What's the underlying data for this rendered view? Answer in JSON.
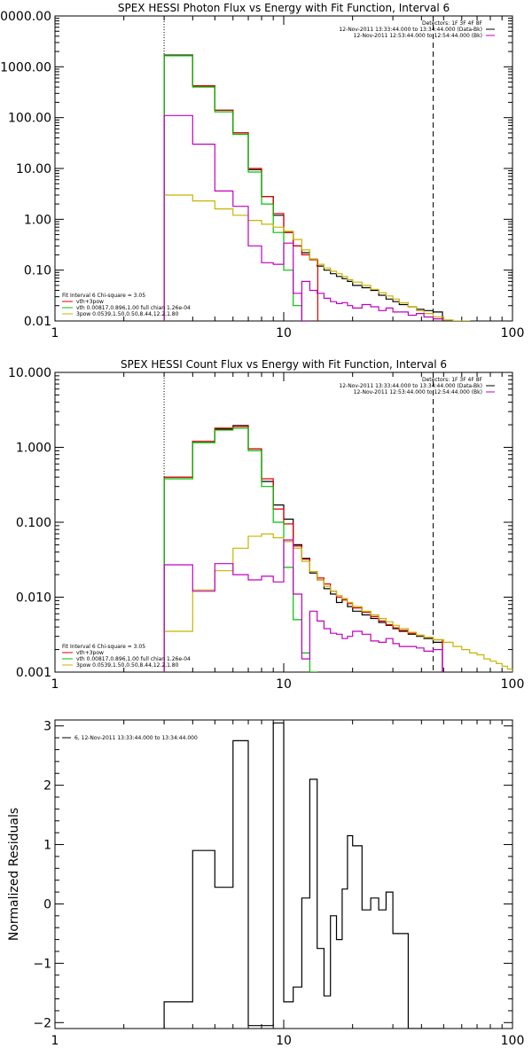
{
  "chart_data": [
    {
      "type": "line",
      "title": "SPEX HESSI Photon Flux vs Energy with Fit Function, Interval 6",
      "xscale": "log",
      "yscale": "log",
      "xlim": [
        1,
        100
      ],
      "ylim": [
        0.01,
        10000
      ],
      "xticks": [
        1,
        10,
        100
      ],
      "xtick_labels": [
        "1",
        "10",
        "100"
      ],
      "yticks": [
        0.01,
        0.1,
        1,
        10,
        100,
        1000,
        10000
      ],
      "ytick_labels": [
        "0.01",
        "0.10",
        "1.00",
        "10.00",
        "100.00",
        "1000.00",
        "10000.00"
      ],
      "vlines": [
        {
          "x": 3,
          "style": "dotted"
        },
        {
          "x": 45,
          "style": "dashed"
        }
      ],
      "legend_top": {
        "placement": "top-right",
        "lines": [
          {
            "text": "Detectors: 1F 3F 4F 8F",
            "color": ""
          },
          {
            "text": "12-Nov-2011 13:33:44.000 to 13:34:44.000 (Data-Bk)",
            "color": "#000000"
          },
          {
            "text": "12-Nov-2011 12:53:44.000 to 12:54:44.000 (Bk)",
            "color": "#c000c0"
          }
        ]
      },
      "legend_bottom": {
        "placement": "bottom-left",
        "lines": [
          {
            "text": "Fit Interval 6   Chi-square = 3.05",
            "color": ""
          },
          {
            "text": "vth+3pow",
            "color": "#e00000"
          },
          {
            "text": "vth 0.00817,0.896,1.00   full chian 1.26e-04",
            "color": "#00c000"
          },
          {
            "text": "3pow 0.0539,1.50,0.50,8.44,12.2,1.80",
            "color": "#c8b400"
          }
        ]
      },
      "series": [
        {
          "color": "#000000",
          "x": [
            3,
            4,
            5,
            6,
            7,
            8,
            9,
            10,
            11,
            12,
            13,
            14,
            15,
            16,
            17,
            18,
            19,
            20,
            22,
            24,
            26,
            28,
            30,
            32,
            35,
            38,
            41,
            45
          ],
          "y": [
            1700,
            420,
            140,
            50,
            9.5,
            2.8,
            1.2,
            0.55,
            0.3,
            0.22,
            0.165,
            0.12,
            0.1,
            0.085,
            0.075,
            0.068,
            0.06,
            0.05,
            0.045,
            0.04,
            0.032,
            0.027,
            0.024,
            0.021,
            0.019,
            0.017,
            0.016,
            0.015
          ]
        },
        {
          "color": "#e00000",
          "x": [
            3,
            4,
            5,
            6,
            7,
            8,
            9,
            10,
            11,
            12,
            13
          ],
          "y": [
            1650,
            420,
            140,
            50,
            10,
            2.8,
            1.3,
            0.55,
            0.3,
            0.2,
            0.16
          ]
        },
        {
          "color": "#00c000",
          "x": [
            3,
            4,
            5,
            6,
            7,
            8,
            9,
            10,
            11,
            12
          ],
          "y": [
            1650,
            400,
            130,
            47,
            8.5,
            2.0,
            0.55,
            0.1,
            0.02,
            0.003
          ]
        },
        {
          "color": "#c8b400",
          "x": [
            3,
            4,
            5,
            6,
            7,
            8,
            9,
            10,
            11,
            12,
            13,
            14,
            15,
            16,
            17,
            18,
            19,
            20,
            22,
            24,
            26,
            28,
            30,
            32,
            35,
            38,
            41,
            45,
            50,
            55,
            60
          ],
          "y": [
            3,
            2.3,
            1.6,
            1.2,
            0.95,
            0.8,
            0.7,
            0.58,
            0.4,
            0.25,
            0.165,
            0.13,
            0.11,
            0.095,
            0.085,
            0.075,
            0.065,
            0.058,
            0.05,
            0.042,
            0.036,
            0.031,
            0.027,
            0.023,
            0.019,
            0.016,
            0.014,
            0.012,
            0.0105,
            0.0095,
            0.009
          ]
        },
        {
          "color": "#c000c0",
          "x": [
            3,
            4,
            5,
            6,
            7,
            8,
            9,
            10,
            11,
            12
          ],
          "y": [
            110,
            30,
            3.6,
            1.8,
            0.3,
            0.14,
            0.13,
            0.34,
            0.035,
            0.005
          ]
        },
        {
          "color": "#c000c0",
          "x": [
            12,
            13,
            14,
            15,
            16,
            17,
            18,
            19,
            20,
            22,
            24,
            26,
            28,
            30,
            32,
            35,
            38,
            41,
            45
          ],
          "y": [
            0.06,
            0.04,
            0.035,
            0.028,
            0.024,
            0.022,
            0.023,
            0.02,
            0.018,
            0.021,
            0.019,
            0.016,
            0.018,
            0.015,
            0.015,
            0.013,
            0.014,
            0.012,
            0.011
          ]
        }
      ]
    },
    {
      "type": "line",
      "title": "SPEX HESSI Count Flux vs Energy with Fit Function, Interval 6",
      "xscale": "log",
      "yscale": "log",
      "xlim": [
        1,
        100
      ],
      "ylim": [
        0.001,
        10
      ],
      "xticks": [
        1,
        10,
        100
      ],
      "xtick_labels": [
        "1",
        "10",
        "100"
      ],
      "yticks": [
        0.001,
        0.01,
        0.1,
        1,
        10
      ],
      "ytick_labels": [
        "0.001",
        "0.010",
        "0.100",
        "1.000",
        "10.000"
      ],
      "vlines": [
        {
          "x": 3,
          "style": "dotted"
        },
        {
          "x": 45,
          "style": "dashed"
        }
      ],
      "legend_top": {
        "placement": "top-right",
        "lines": [
          {
            "text": "Detectors: 1F 3F 4F 8F",
            "color": ""
          },
          {
            "text": "12-Nov-2011 13:33:44.000 to 13:34:44.000 (Data-Bk)",
            "color": "#000000"
          },
          {
            "text": "12-Nov-2011 12:53:44.000 to 12:54:44.000 (Bk)",
            "color": "#c000c0"
          }
        ]
      },
      "legend_bottom": {
        "placement": "bottom-left",
        "lines": [
          {
            "text": "Fit Interval 6   Chi-square = 3.05",
            "color": ""
          },
          {
            "text": "vth+3pow",
            "color": "#e00000"
          },
          {
            "text": "vth 0.00817,0.896,1.00   full chian 1.26e-04",
            "color": "#00c000"
          },
          {
            "text": "3pow 0.0539,1.50,0.50,8.44,12.2,1.80",
            "color": "#c8b400"
          }
        ]
      },
      "series": [
        {
          "color": "#000000",
          "x": [
            3,
            4,
            5,
            6,
            7,
            8,
            9,
            10,
            11,
            12,
            13,
            14,
            15,
            16,
            17,
            18,
            19,
            20,
            22,
            24,
            26,
            28,
            30,
            32,
            35,
            38,
            41,
            45
          ],
          "y": [
            0.4,
            1.2,
            1.75,
            1.95,
            0.95,
            0.35,
            0.17,
            0.11,
            0.05,
            0.033,
            0.021,
            0.017,
            0.013,
            0.011,
            0.0085,
            0.0095,
            0.0075,
            0.0065,
            0.0058,
            0.0052,
            0.0046,
            0.0042,
            0.0038,
            0.0035,
            0.0032,
            0.003,
            0.0028,
            0.0025
          ]
        },
        {
          "color": "#e00000",
          "x": [
            3,
            4,
            5,
            6,
            7,
            8,
            9,
            10,
            11,
            12,
            13,
            14,
            15,
            16,
            17,
            18,
            19,
            20,
            22,
            24,
            26,
            28,
            30,
            32,
            35,
            38,
            41,
            45
          ],
          "y": [
            0.4,
            1.2,
            1.8,
            1.9,
            0.95,
            0.38,
            0.15,
            0.095,
            0.048,
            0.032,
            0.022,
            0.018,
            0.015,
            0.012,
            0.01,
            0.0092,
            0.0082,
            0.0072,
            0.0063,
            0.0055,
            0.0048,
            0.0043,
            0.0039,
            0.0036,
            0.0033,
            0.0031,
            0.0029,
            0.0027
          ]
        },
        {
          "color": "#00c000",
          "x": [
            3,
            4,
            5,
            6,
            7,
            8,
            9,
            10,
            11,
            12,
            13
          ],
          "y": [
            0.38,
            1.15,
            1.7,
            1.8,
            0.9,
            0.3,
            0.1,
            0.025,
            0.005,
            0.0018,
            0.0008
          ]
        },
        {
          "color": "#c8b400",
          "x": [
            3,
            4,
            5,
            6,
            7,
            8,
            9,
            10,
            11,
            12,
            13,
            14,
            15,
            16,
            17,
            18,
            19,
            20,
            22,
            24,
            26,
            28,
            30,
            32,
            35,
            38,
            41,
            45,
            50,
            55,
            60,
            65,
            70,
            75,
            80,
            85,
            90,
            95
          ],
          "y": [
            0.0035,
            0.0125,
            0.0225,
            0.045,
            0.065,
            0.07,
            0.062,
            0.055,
            0.045,
            0.03,
            0.022,
            0.017,
            0.014,
            0.012,
            0.0105,
            0.0095,
            0.0085,
            0.0075,
            0.0065,
            0.0058,
            0.0052,
            0.0047,
            0.0042,
            0.0038,
            0.0034,
            0.0031,
            0.0029,
            0.0027,
            0.0025,
            0.0022,
            0.002,
            0.0018,
            0.0017,
            0.0015,
            0.0014,
            0.0013,
            0.0012,
            0.0011
          ]
        },
        {
          "color": "#c000c0",
          "x": [
            3,
            4,
            5,
            6,
            7,
            8,
            9,
            10,
            11,
            12,
            13,
            14,
            15,
            16,
            17,
            18,
            19,
            20,
            22,
            24,
            26,
            28,
            30,
            32,
            35,
            38,
            41,
            45
          ],
          "y": [
            0.027,
            0.012,
            0.028,
            0.02,
            0.017,
            0.019,
            0.016,
            0.058,
            0.011,
            0.0015,
            0.0065,
            0.0048,
            0.0038,
            0.0033,
            0.0032,
            0.0028,
            0.003,
            0.0035,
            0.0032,
            0.0026,
            0.0025,
            0.0028,
            0.0024,
            0.0022,
            0.0022,
            0.0021,
            0.0019,
            0.002
          ]
        }
      ]
    },
    {
      "type": "line",
      "title": "",
      "xscale": "log",
      "yscale": "linear",
      "xlim": [
        1,
        100
      ],
      "ylim": [
        -2.1,
        3.1
      ],
      "xticks": [
        1,
        10,
        100
      ],
      "xtick_labels": [
        "1",
        "10",
        "100"
      ],
      "yticks": [
        -2,
        -1,
        0,
        1,
        2,
        3
      ],
      "ytick_labels": [
        "−2",
        "−1",
        "0",
        "1",
        "2",
        "3"
      ],
      "ylabel": "Normalized Residuals",
      "legend_top": {
        "placement": "top-left",
        "lines": [
          {
            "text": "6, 12-Nov-2011 13:33:44.000 to 13:34:44.000",
            "color": "#000000"
          }
        ]
      },
      "series": [
        {
          "color": "#000000",
          "x": [
            3,
            4,
            5,
            6,
            7,
            8,
            9,
            10,
            11,
            12,
            13,
            14,
            15,
            16,
            17,
            18,
            19,
            20,
            22,
            24,
            26,
            28,
            30,
            32,
            35,
            38,
            41,
            45
          ],
          "y": [
            -1.65,
            0.9,
            0.28,
            2.75,
            -2.05,
            -2.05,
            3.05,
            -1.65,
            -1.4,
            0.1,
            2.1,
            -0.75,
            -1.55,
            -0.2,
            -0.6,
            0.25,
            1.15,
            0.98,
            -0.1,
            0.1,
            -0.1,
            0.2,
            -0.5,
            -0.5,
            -2.1,
            -2.1,
            -2.1,
            -2.1
          ]
        }
      ]
    }
  ]
}
